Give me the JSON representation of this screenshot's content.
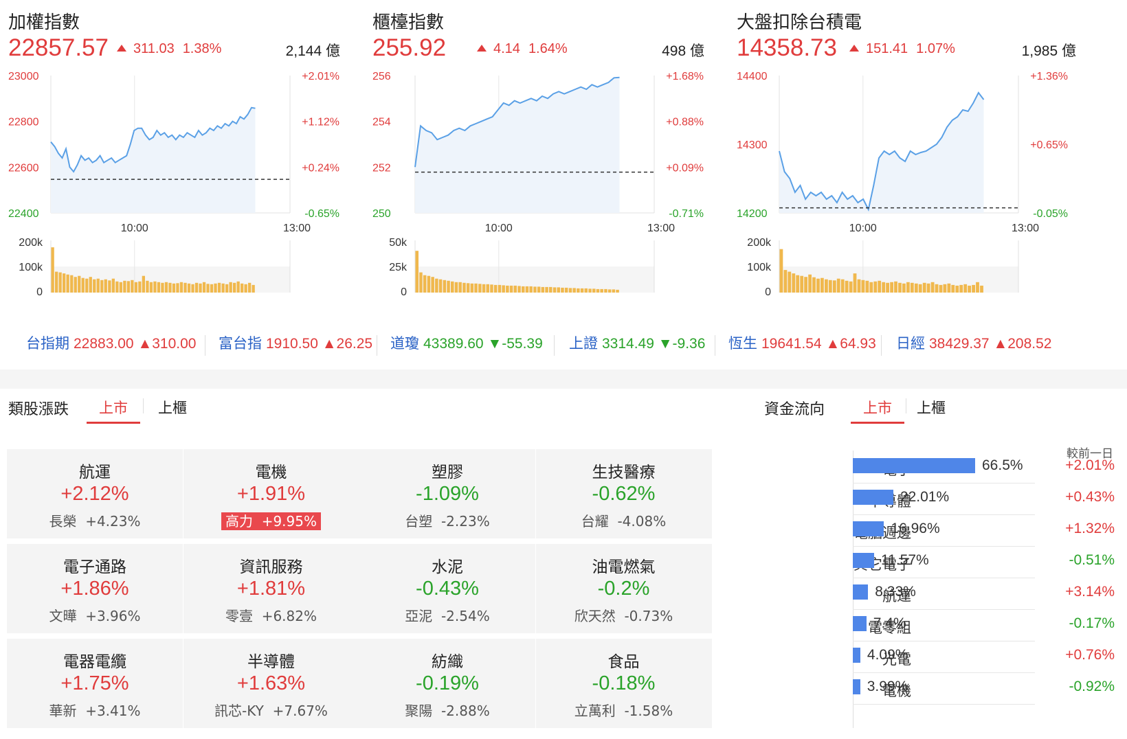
{
  "indices": [
    {
      "id": "taiex",
      "title": "加權指數",
      "price": "22857.57",
      "change": "311.03",
      "change_pct": "1.38%",
      "volume": "2,144 億",
      "left_axis_labels": [
        "23000",
        "22800",
        "22600",
        "22400"
      ],
      "right_axis_labels": [
        "+2.01%",
        "+1.12%",
        "+0.24%",
        "-0.65%"
      ],
      "time_labels": [
        "10:00",
        "13:00"
      ],
      "volume_axis_labels": [
        "200k",
        "100k",
        "0"
      ],
      "chart_data": {
        "type": "area",
        "ylim": [
          22400,
          23000
        ],
        "ref": 22546.5,
        "line_color": "#5aa0e6",
        "values": [
          22710,
          22690,
          22660,
          22640,
          22680,
          22600,
          22580,
          22610,
          22650,
          22630,
          22640,
          22620,
          22630,
          22650,
          22620,
          22630,
          22640,
          22620,
          22630,
          22640,
          22650,
          22700,
          22760,
          22770,
          22770,
          22740,
          22720,
          22730,
          22760,
          22740,
          22750,
          22730,
          22740,
          22720,
          22740,
          22730,
          22750,
          22740,
          22730,
          22760,
          22740,
          22750,
          22770,
          22760,
          22780,
          22770,
          22790,
          22780,
          22800,
          22790,
          22820,
          22810,
          22830,
          22860,
          22857
        ]
      },
      "volume_bars": [
        130,
        60,
        58,
        55,
        52,
        50,
        45,
        48,
        42,
        40,
        45,
        38,
        40,
        36,
        38,
        35,
        40,
        32,
        30,
        34,
        33,
        36,
        30,
        32,
        48,
        34,
        30,
        32,
        30,
        28,
        30,
        28,
        26,
        27,
        30,
        28,
        26,
        24,
        28,
        26,
        30,
        25,
        24,
        26,
        28,
        26,
        24,
        30,
        28,
        32,
        26,
        24,
        28,
        22
      ]
    },
    {
      "id": "otc",
      "title": "櫃檯指數",
      "price": "255.92",
      "change": "4.14",
      "change_pct": "1.64%",
      "volume": "498 億",
      "left_axis_labels": [
        "256",
        "254",
        "252",
        "250"
      ],
      "right_axis_labels": [
        "+1.68%",
        "+0.88%",
        "+0.09%",
        "-0.71%"
      ],
      "time_labels": [
        "10:00",
        "13:00"
      ],
      "volume_axis_labels": [
        "50k",
        "25k",
        "0"
      ],
      "chart_data": {
        "type": "area",
        "ylim": [
          250,
          256
        ],
        "ref": 251.78,
        "line_color": "#5aa0e6",
        "values": [
          252.0,
          253.8,
          253.6,
          253.5,
          253.2,
          253.3,
          253.4,
          253.6,
          253.7,
          253.6,
          253.8,
          253.9,
          254.0,
          254.1,
          254.2,
          254.5,
          254.8,
          254.7,
          254.9,
          254.8,
          254.9,
          255.0,
          254.9,
          255.1,
          255.0,
          255.2,
          255.3,
          255.2,
          255.3,
          255.4,
          255.5,
          255.4,
          255.6,
          255.5,
          255.6,
          255.7,
          255.9,
          255.92
        ]
      },
      "volume_bars": [
        120,
        58,
        50,
        48,
        45,
        40,
        38,
        36,
        34,
        32,
        30,
        30,
        28,
        27,
        26,
        26,
        25,
        24,
        24,
        23,
        22,
        22,
        21,
        20,
        20,
        20,
        19,
        18,
        18,
        18,
        17,
        17,
        16,
        16,
        16,
        15,
        15,
        14,
        14,
        13,
        13,
        12,
        12,
        12,
        11,
        11,
        10,
        10,
        10,
        9,
        9,
        8
      ]
    },
    {
      "id": "ex-tsmc",
      "title": "大盤扣除台積電",
      "price": "14358.73",
      "change": "151.41",
      "change_pct": "1.07%",
      "volume": "1,985 億",
      "left_axis_labels": [
        "14400",
        "14300",
        "14200"
      ],
      "right_axis_labels": [
        "+1.36%",
        "+0.65%",
        "-0.05%"
      ],
      "time_labels": [
        "10:00",
        "13:00"
      ],
      "volume_axis_labels": [
        "200k",
        "100k",
        "0"
      ],
      "chart_data": {
        "type": "area",
        "ylim": [
          14200,
          14400
        ],
        "ref": 14207.32,
        "line_color": "#5aa0e6",
        "values": [
          14290,
          14260,
          14250,
          14230,
          14240,
          14220,
          14230,
          14225,
          14230,
          14220,
          14225,
          14215,
          14230,
          14220,
          14225,
          14215,
          14220,
          14205,
          14240,
          14280,
          14290,
          14285,
          14290,
          14280,
          14275,
          14290,
          14285,
          14288,
          14290,
          14295,
          14300,
          14310,
          14325,
          14335,
          14340,
          14350,
          14348,
          14360,
          14375,
          14365
        ]
      },
      "volume_bars": [
        125,
        65,
        60,
        55,
        50,
        48,
        45,
        52,
        44,
        40,
        42,
        38,
        36,
        35,
        40,
        38,
        34,
        32,
        55,
        38,
        36,
        34,
        30,
        32,
        34,
        30,
        28,
        30,
        32,
        28,
        26,
        30,
        28,
        26,
        24,
        28,
        26,
        30,
        24,
        22,
        24,
        26,
        22,
        20,
        22,
        24,
        20,
        22,
        30,
        20
      ]
    }
  ],
  "tickers": [
    {
      "name": "台指期",
      "value": "22883.00",
      "change": "▲310.00",
      "dir": "up"
    },
    {
      "name": "富台指",
      "value": "1910.50",
      "change": "▲26.25",
      "dir": "up"
    },
    {
      "name": "道瓊",
      "value": "43389.60",
      "change": "▼-55.39",
      "dir": "down"
    },
    {
      "name": "上證",
      "value": "3314.49",
      "change": "▼-9.36",
      "dir": "down"
    },
    {
      "name": "恆生",
      "value": "19641.54",
      "change": "▲64.93",
      "dir": "up"
    },
    {
      "name": "日經",
      "value": "38429.37",
      "change": "▲208.52",
      "dir": "up"
    }
  ],
  "sectors": {
    "title": "類股漲跌",
    "tabs": [
      "上市",
      "上櫃"
    ],
    "cards": [
      {
        "name": "航運",
        "pct": "+2.12%",
        "dir": "up",
        "stock": "長榮",
        "stock_pct": "+4.23%",
        "highlight": false
      },
      {
        "name": "電機",
        "pct": "+1.91%",
        "dir": "up",
        "stock": "高力",
        "stock_pct": "+9.95%",
        "highlight": true
      },
      {
        "name": "塑膠",
        "pct": "-1.09%",
        "dir": "down",
        "stock": "台塑",
        "stock_pct": "-2.23%",
        "highlight": false
      },
      {
        "name": "生技醫療",
        "pct": "-0.62%",
        "dir": "down",
        "stock": "台耀",
        "stock_pct": "-4.08%",
        "highlight": false
      },
      {
        "name": "電子通路",
        "pct": "+1.86%",
        "dir": "up",
        "stock": "文曄",
        "stock_pct": "+3.96%",
        "highlight": false
      },
      {
        "name": "資訊服務",
        "pct": "+1.81%",
        "dir": "up",
        "stock": "零壹",
        "stock_pct": "+6.82%",
        "highlight": false
      },
      {
        "name": "水泥",
        "pct": "-0.43%",
        "dir": "down",
        "stock": "亞泥",
        "stock_pct": "-2.54%",
        "highlight": false
      },
      {
        "name": "油電燃氣",
        "pct": "-0.2%",
        "dir": "down",
        "stock": "欣天然",
        "stock_pct": "-0.73%",
        "highlight": false
      },
      {
        "name": "電器電纜",
        "pct": "+1.75%",
        "dir": "up",
        "stock": "華新",
        "stock_pct": "+3.41%",
        "highlight": false
      },
      {
        "name": "半導體",
        "pct": "+1.63%",
        "dir": "up",
        "stock": "訊芯-KY",
        "stock_pct": "+7.67%",
        "highlight": false
      },
      {
        "name": "紡織",
        "pct": "-0.19%",
        "dir": "down",
        "stock": "聚陽",
        "stock_pct": "-2.88%",
        "highlight": false
      },
      {
        "name": "食品",
        "pct": "-0.18%",
        "dir": "down",
        "stock": "立萬利",
        "stock_pct": "-1.58%",
        "highlight": false
      }
    ]
  },
  "fund_flow": {
    "title": "資金流向",
    "tabs": [
      "上市",
      "上櫃"
    ],
    "column_header": "較前一日",
    "chart_data": {
      "type": "bar",
      "categories": [
        "電子",
        "半導體",
        "電腦週邊",
        "其它電子",
        "航運",
        "電零組",
        "光電",
        "電機"
      ],
      "values": [
        66.5,
        22.01,
        16.96,
        11.57,
        8.33,
        7.4,
        4.09,
        3.99
      ]
    },
    "rows": [
      {
        "name": "電子",
        "value": "66.5%",
        "change": "+2.01%",
        "dir": "up"
      },
      {
        "name": "半導體",
        "value": "22.01%",
        "change": "+0.43%",
        "dir": "up"
      },
      {
        "name": "電腦週邊",
        "value": "16.96%",
        "change": "+1.32%",
        "dir": "up"
      },
      {
        "name": "其它電子",
        "value": "11.57%",
        "change": "-0.51%",
        "dir": "down"
      },
      {
        "name": "航運",
        "value": "8.33%",
        "change": "+3.14%",
        "dir": "up"
      },
      {
        "name": "電零組",
        "value": "7.4%",
        "change": "-0.17%",
        "dir": "down"
      },
      {
        "name": "光電",
        "value": "4.09%",
        "change": "+0.76%",
        "dir": "up"
      },
      {
        "name": "電機",
        "value": "3.99%",
        "change": "-0.92%",
        "dir": "down"
      }
    ]
  }
}
